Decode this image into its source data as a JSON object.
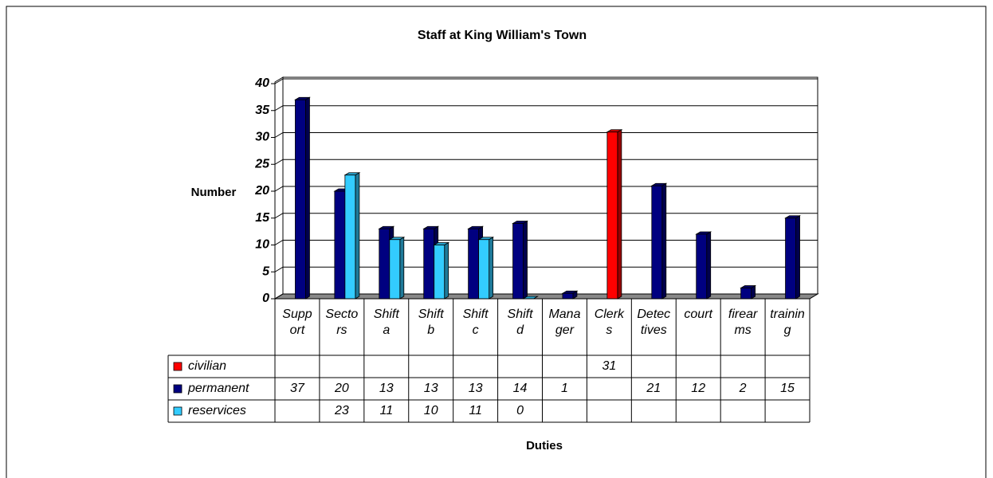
{
  "chart_data": {
    "type": "bar3d",
    "title": "Staff at King William's Town",
    "y_label": "Number",
    "x_label": "Duties",
    "categories": [
      "Support",
      "Sectors",
      "Shift a",
      "Shift b",
      "Shift c",
      "Shift d",
      "Manager",
      "Clerks",
      "Detectives",
      "court",
      "firearms",
      "training"
    ],
    "series": [
      {
        "name": "civilian",
        "color": "#ff0000",
        "values": [
          null,
          null,
          null,
          null,
          null,
          null,
          null,
          31,
          null,
          null,
          null,
          null
        ]
      },
      {
        "name": "permanent",
        "color": "#000080",
        "values": [
          37,
          20,
          13,
          13,
          13,
          14,
          1,
          null,
          21,
          12,
          2,
          15
        ]
      },
      {
        "name": "reservices",
        "color": "#33ccff",
        "values": [
          null,
          23,
          11,
          10,
          11,
          0,
          null,
          null,
          null,
          null,
          null,
          null
        ]
      }
    ],
    "ylim": [
      0,
      40
    ],
    "yticks": [
      0,
      5,
      10,
      15,
      20,
      25,
      30,
      35,
      40
    ],
    "grid": true,
    "data_table": true
  }
}
